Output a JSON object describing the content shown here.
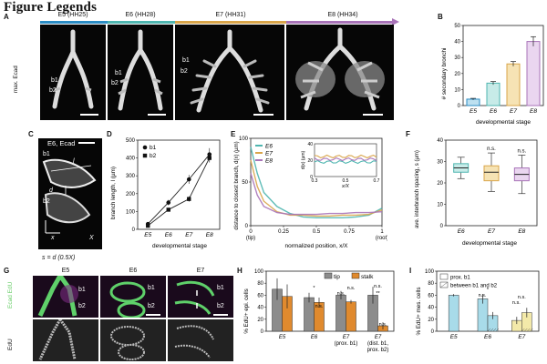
{
  "figure_title": "Figure Legends",
  "panel_letters": {
    "A": "A",
    "B": "B",
    "C": "C",
    "D": "D",
    "E": "E",
    "F": "F",
    "G": "G",
    "H": "H",
    "I": "I"
  },
  "colors": {
    "E5": "#2b8cc4",
    "E6": "#4fb6b0",
    "E7": "#d9a54a",
    "E8": "#a873b8",
    "orange": "#e08a2e",
    "gray": "#8c8c8c",
    "lightblue": "#a8dbe9",
    "yellow": "#f3e9a9"
  },
  "panelA": {
    "stages": [
      "E5 (HH25)",
      "E6 (HH28)",
      "E7 (HH31)",
      "E8 (HH34)"
    ],
    "ylabel": "max. Ecad",
    "b1": "b1",
    "b2": "b2"
  },
  "panelC": {
    "title": "E6, Ecad",
    "b1": "b1",
    "b2": "b2",
    "l": "l",
    "d_label": "d",
    "x_label": "x",
    "X_label": "X",
    "formula": "s = d (0.5X)"
  },
  "panelG": {
    "stages": [
      "E5",
      "E6",
      "E7"
    ],
    "ylabel_top": "Ecad EdU",
    "ylabel_bottom": "EdU",
    "b1": "b1",
    "b2": "b2"
  },
  "chart_data": [
    {
      "panel": "B",
      "type": "bar",
      "categories": [
        "E5",
        "E6",
        "E7",
        "E8"
      ],
      "values": [
        4,
        14,
        26,
        40
      ],
      "errors": [
        0.5,
        1,
        1.5,
        3
      ],
      "ylabel": "# secondary bronchi",
      "xlabel": "developmental stage",
      "ylim": [
        0,
        50
      ],
      "yticks": [
        "0",
        "10",
        "20",
        "30",
        "40",
        "50"
      ]
    },
    {
      "panel": "D",
      "type": "line",
      "categories": [
        "E5",
        "E6",
        "E7",
        "E8"
      ],
      "series": [
        {
          "name": "b1",
          "values": [
            30,
            150,
            280,
            420
          ],
          "errors": [
            10,
            15,
            25,
            35
          ]
        },
        {
          "name": "b2",
          "values": [
            20,
            110,
            170,
            400
          ],
          "errors": [
            8,
            10,
            15,
            25
          ]
        }
      ],
      "ylabel": "branch length, l (µm)",
      "xlabel": "developmental stage",
      "ylim": [
        0,
        500
      ],
      "yticks": [
        "0",
        "100",
        "200",
        "300",
        "400",
        "500"
      ]
    },
    {
      "panel": "E",
      "type": "line",
      "series": [
        {
          "name": "E6",
          "x": [
            0,
            0.05,
            0.1,
            0.2,
            0.3,
            0.4,
            0.5,
            0.6,
            0.7,
            0.8,
            0.9,
            1.0
          ],
          "y": [
            90,
            60,
            38,
            22,
            14,
            10,
            9,
            9,
            9,
            10,
            12,
            20
          ]
        },
        {
          "name": "E7",
          "x": [
            0,
            0.05,
            0.1,
            0.2,
            0.3,
            0.4,
            0.5,
            0.6,
            0.7,
            0.8,
            0.9,
            1.0
          ],
          "y": [
            75,
            45,
            28,
            16,
            12,
            12,
            11,
            11,
            12,
            12,
            13,
            18
          ]
        },
        {
          "name": "E8",
          "x": [
            0,
            0.05,
            0.1,
            0.2,
            0.3,
            0.4,
            0.5,
            0.6,
            0.7,
            0.8,
            0.9,
            1.0
          ],
          "y": [
            60,
            35,
            22,
            15,
            13,
            13,
            13,
            14,
            14,
            15,
            15,
            16
          ]
        }
      ],
      "xlabel": "normalized position, x/X",
      "ylabel": "distance to closest branch, d(x) (µm)",
      "xticks": [
        "0",
        "0.25",
        "0.5",
        "0.75",
        "1"
      ],
      "xtick_notes": [
        "(tip)",
        "(root)"
      ],
      "yticks": [
        "0",
        "50",
        "100"
      ],
      "ylim": [
        0,
        100
      ],
      "inset": {
        "xlabel": "x/X",
        "ylabel": "d(x) (µm)",
        "xticks": [
          "0.3",
          "0.5",
          "0.7"
        ],
        "yticks": [
          "0",
          "20",
          "40"
        ]
      }
    },
    {
      "panel": "F",
      "type": "box",
      "categories": [
        "E6",
        "E7",
        "E8"
      ],
      "boxes": [
        {
          "min": 22,
          "q1": 25,
          "median": 27,
          "q3": 29,
          "max": 32
        },
        {
          "min": 16,
          "q1": 21,
          "median": 25,
          "q3": 28,
          "max": 34
        },
        {
          "min": 15,
          "q1": 21,
          "median": 24,
          "q3": 27,
          "max": 33
        }
      ],
      "annotations": [
        "n.s.",
        "n.s."
      ],
      "ylabel": "ave. interbranch spacing, s (µm)",
      "xlabel": "developmental stage",
      "ylim": [
        0,
        40
      ],
      "yticks": [
        "0",
        "10",
        "20",
        "30",
        "40"
      ]
    },
    {
      "panel": "H",
      "type": "bar",
      "categories": [
        "E5",
        "E6",
        "E7 (prox. b1)",
        "E7 (dist. b1, prox. b2)"
      ],
      "category_lines": [
        [
          "E5"
        ],
        [
          "E6"
        ],
        [
          "E7",
          "(prox. b1)"
        ],
        [
          "E7",
          "(dist. b1,",
          "prox. b2)"
        ]
      ],
      "series": [
        {
          "name": "tip",
          "values": [
            70,
            56,
            60,
            60
          ],
          "errors": [
            18,
            8,
            7,
            14
          ]
        },
        {
          "name": "stalk",
          "values": [
            58,
            48,
            49,
            9
          ],
          "errors": [
            20,
            8,
            3,
            6
          ]
        }
      ],
      "annotations": [
        "*",
        "n.s.",
        "n.s.",
        "n.s.",
        "n.s.",
        "**",
        "n.s."
      ],
      "ylabel": "% EdU+ epi. cells",
      "ylim": [
        0,
        100
      ],
      "yticks": [
        "0",
        "20",
        "40",
        "60",
        "80",
        "100"
      ]
    },
    {
      "panel": "I",
      "type": "bar",
      "categories": [
        "E5",
        "E6",
        "E7"
      ],
      "series": [
        {
          "name": "prox. b1",
          "values": [
            60,
            54,
            18
          ],
          "errors": [
            2,
            8,
            6
          ]
        },
        {
          "name": "between b1 and b2",
          "values": [
            null,
            26,
            31
          ],
          "errors": [
            null,
            6,
            8
          ]
        }
      ],
      "annotations": [
        "*",
        "n.s.",
        "n.s.",
        "n.s."
      ],
      "ylabel": "% EdU+ mes. cells",
      "ylim": [
        0,
        100
      ],
      "yticks": [
        "0",
        "20",
        "40",
        "60",
        "80",
        "100"
      ]
    }
  ]
}
